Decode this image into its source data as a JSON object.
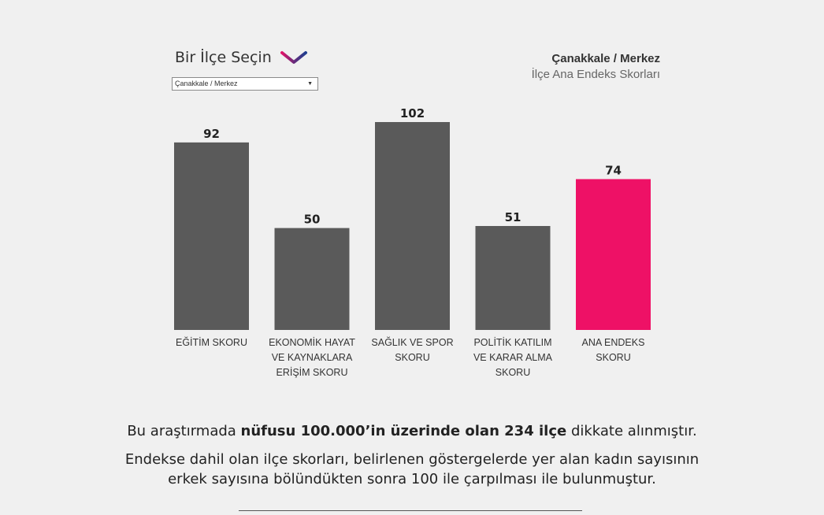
{
  "selector": {
    "title": "Bir İlçe Seçin",
    "selected": "Çanakkale / Merkez"
  },
  "header": {
    "district": "Çanakkale / Merkez",
    "subtitle": "İlçe Ana Endeks Skorları"
  },
  "chart_data": {
    "type": "bar",
    "categories": [
      [
        "EĞİTİM SKORU"
      ],
      [
        "EKONOMİK HAYAT",
        "VE KAYNAKLARA",
        "ERİŞİM SKORU"
      ],
      [
        "SAĞLIK VE SPOR",
        "SKORU"
      ],
      [
        "POLİTİK KATILIM",
        "VE KARAR ALMA",
        "SKORU"
      ],
      [
        "ANA ENDEKS",
        "SKORU"
      ]
    ],
    "values": [
      92,
      50,
      102,
      51,
      74
    ],
    "colors": [
      "#5a5a5a",
      "#5a5a5a",
      "#5a5a5a",
      "#5a5a5a",
      "#ee1166"
    ],
    "ylim": [
      0,
      102
    ],
    "grid": false
  },
  "footer": {
    "line1_pre": "Bu araştırmada ",
    "line1_bold": "nüfusu 100.000’in üzerinde olan 234 ilçe",
    "line1_post": " dikkate alınmıştır.",
    "line2a": "Endekse dahil olan ilçe skorları, belirlenen göstergelerde yer alan kadın sayısının",
    "line2b": "erkek sayısına bölündükten sonra  100 ile çarpılması ile bulunmuştur."
  },
  "icons": {
    "chevron": "chevron-down-icon"
  }
}
